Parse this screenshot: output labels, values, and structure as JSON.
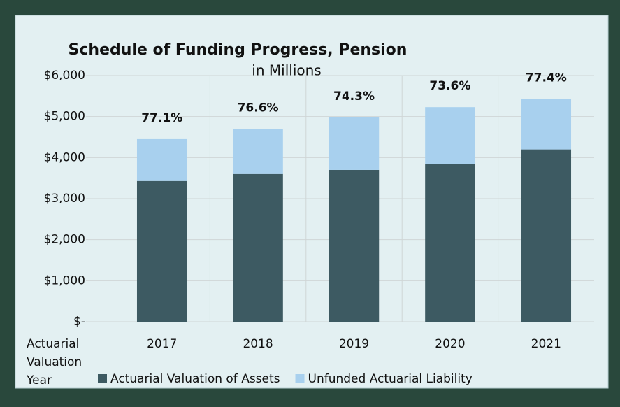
{
  "chart_data": {
    "type": "stacked_bar",
    "title": "Schedule of Funding Progress, Pension",
    "subtitle": "in Millions",
    "x_label": "Actuarial Valuation Year",
    "categories": [
      "2017",
      "2018",
      "2019",
      "2020",
      "2021"
    ],
    "series": [
      {
        "name": "Actuarial Valuation of Assets",
        "color": "#3d5a62",
        "values": [
          3430,
          3600,
          3700,
          3850,
          4200
        ]
      },
      {
        "name": "Unfunded Actuarial Liability",
        "color": "#a8d0ee",
        "values": [
          1020,
          1100,
          1280,
          1380,
          1225
        ]
      }
    ],
    "annotations": [
      "77.1%",
      "76.6%",
      "74.3%",
      "73.6%",
      "77.4%"
    ],
    "ylim": [
      0,
      6000
    ],
    "yticks": [
      {
        "value": 0,
        "label": "$-"
      },
      {
        "value": 1000,
        "label": "$1,000"
      },
      {
        "value": 2000,
        "label": "$2,000"
      },
      {
        "value": 3000,
        "label": "$3,000"
      },
      {
        "value": 4000,
        "label": "$4,000"
      },
      {
        "value": 5000,
        "label": "$5,000"
      },
      {
        "value": 6000,
        "label": "$6,000"
      }
    ],
    "grid": true,
    "legend": "bottom"
  }
}
